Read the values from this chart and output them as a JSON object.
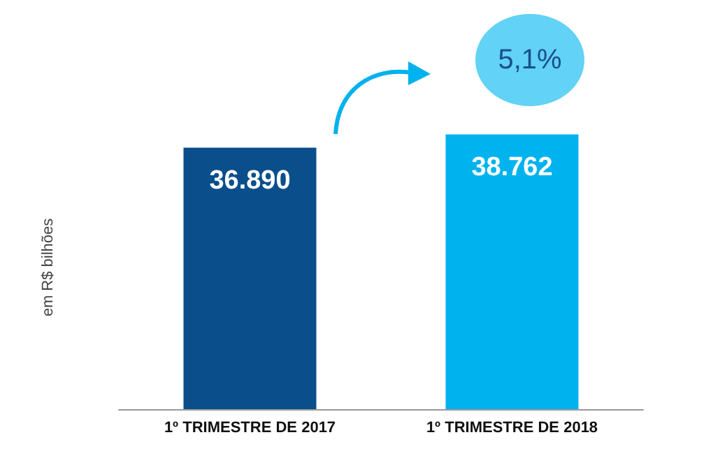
{
  "chart_data": {
    "type": "bar",
    "ylabel": "em R$ bilhões",
    "categories": [
      "1º TRIMESTRE DE 2017",
      "1º TRIMESTRE DE 2018"
    ],
    "values": [
      36890,
      38762
    ],
    "value_labels": [
      "36.890",
      "38.762"
    ],
    "colors": [
      "#0a4f8c",
      "#00b2ee"
    ],
    "annotations": [
      "5,1%"
    ]
  }
}
